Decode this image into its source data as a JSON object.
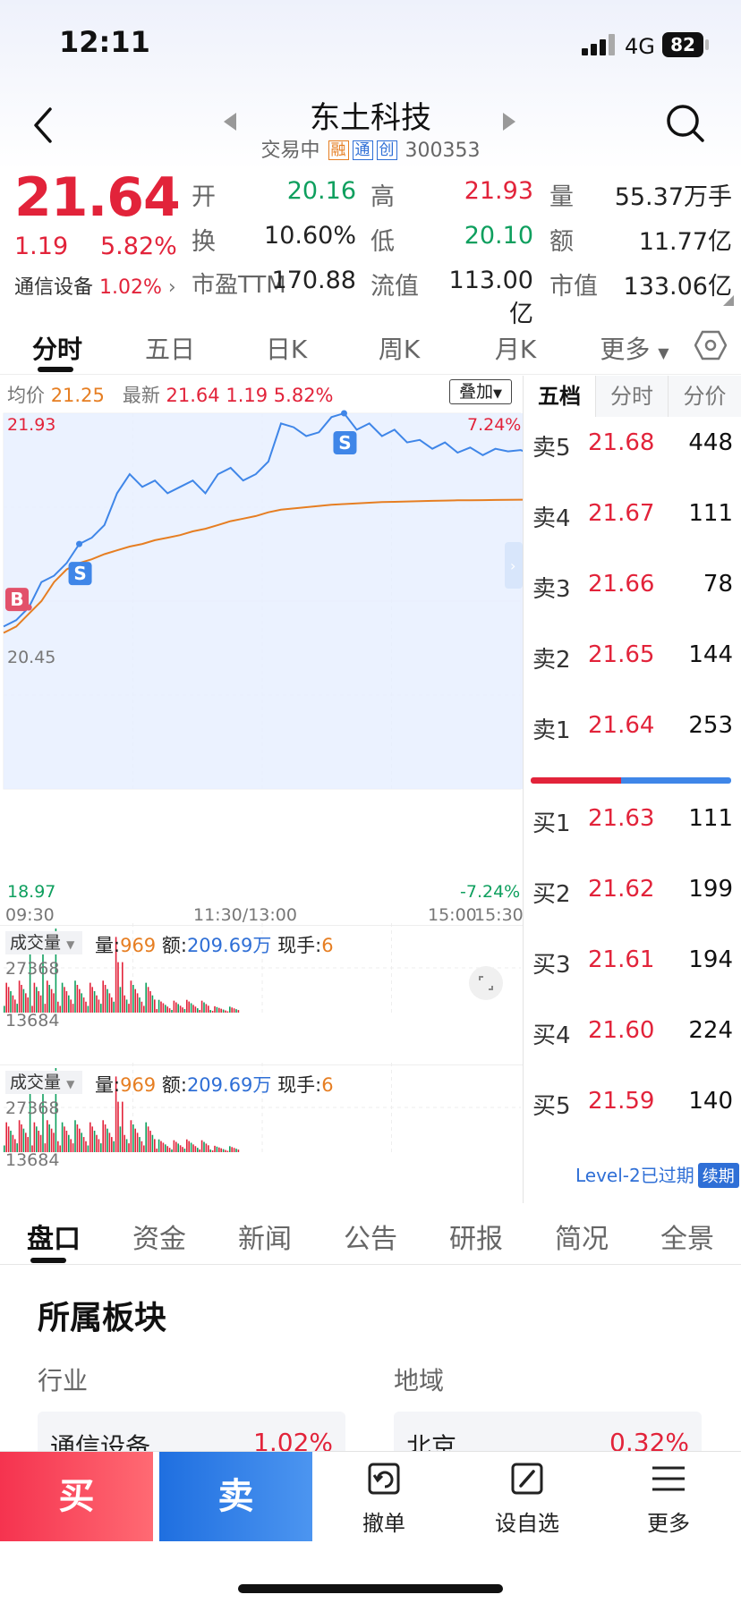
{
  "status_bar": {
    "time": "12:11",
    "network": "4G",
    "battery": "82"
  },
  "header": {
    "title": "东土科技",
    "status": "交易中",
    "tags": [
      "融",
      "通",
      "创"
    ],
    "code": "300353"
  },
  "quote": {
    "last_price": "21.64",
    "change": "1.19",
    "change_pct": "5.82%",
    "sector": "通信设备",
    "sector_pct": "1.02%",
    "fields": [
      {
        "label": "开",
        "value": "20.16",
        "color": "green"
      },
      {
        "label": "高",
        "value": "21.93",
        "color": "red"
      },
      {
        "label": "量",
        "value": "55.37万手",
        "color": "black"
      },
      {
        "label": "换",
        "value": "10.60%",
        "color": "black"
      },
      {
        "label": "低",
        "value": "20.10",
        "color": "green"
      },
      {
        "label": "额",
        "value": "11.77亿",
        "color": "black"
      },
      {
        "label": "市盈TTM",
        "value": "170.88",
        "color": "black"
      },
      {
        "label": "流值",
        "value": "113.00亿",
        "color": "black"
      },
      {
        "label": "市值",
        "value": "133.06亿",
        "color": "black"
      }
    ]
  },
  "chart_tabs": {
    "tabs": [
      "分时",
      "五日",
      "日K",
      "周K",
      "月K",
      "更多"
    ],
    "active": "分时"
  },
  "legend": {
    "avg_label": "均价",
    "avg_value": "21.25",
    "latest_label": "最新",
    "latest_value": "21.64",
    "latest_change": "1.19",
    "latest_pct": "5.82%",
    "overlay": "叠加"
  },
  "chart_data": {
    "type": "line",
    "y_high": "21.93",
    "y_mid": "20.45",
    "y_low": "18.97",
    "pct_high": "7.24%",
    "pct_low": "-7.24%",
    "ylim": [
      18.97,
      21.93
    ],
    "x_ticks": [
      "09:30",
      "11:30/13:00",
      "15:00",
      "15:30"
    ],
    "series": [
      {
        "name": "最新",
        "color": "#3f86e8",
        "values": [
          20.25,
          20.3,
          20.4,
          20.6,
          20.65,
          20.75,
          20.9,
          20.95,
          21.05,
          21.3,
          21.45,
          21.35,
          21.4,
          21.3,
          21.35,
          21.4,
          21.3,
          21.45,
          21.5,
          21.4,
          21.45,
          21.55,
          21.85,
          21.82,
          21.75,
          21.78,
          21.9,
          21.93,
          21.8,
          21.85,
          21.75,
          21.8,
          21.7,
          21.72,
          21.65,
          21.7,
          21.62,
          21.66,
          21.6,
          21.65,
          21.63,
          21.64,
          21.6,
          21.65,
          21.64
        ]
      },
      {
        "name": "均价",
        "color": "#e67e22",
        "values": [
          20.2,
          20.25,
          20.35,
          20.45,
          20.6,
          20.7,
          20.75,
          20.78,
          20.82,
          20.85,
          20.88,
          20.9,
          20.93,
          20.95,
          20.97,
          21.0,
          21.02,
          21.05,
          21.08,
          21.1,
          21.12,
          21.15,
          21.17,
          21.18,
          21.19,
          21.2,
          21.21,
          21.215,
          21.22,
          21.225,
          21.23,
          21.232,
          21.235,
          21.238,
          21.24,
          21.242,
          21.244,
          21.245,
          21.246,
          21.247,
          21.248,
          21.249,
          21.25,
          21.25,
          21.25
        ]
      }
    ],
    "markers": [
      {
        "label": "B",
        "index": 2
      },
      {
        "label": "S",
        "index": 6
      },
      {
        "label": "S",
        "index": 27
      }
    ]
  },
  "volume_panels": [
    {
      "selector": "成交量",
      "vol_label": "量",
      "vol": "969",
      "amt_label": "额",
      "amt": "209.69万",
      "hand_label": "现手",
      "hand": "6",
      "max": "27368",
      "mid": "13684"
    },
    {
      "selector": "成交量",
      "vol_label": "量",
      "vol": "969",
      "amt_label": "额",
      "amt": "209.69万",
      "hand_label": "现手",
      "hand": "6",
      "max": "27368",
      "mid": "13684"
    }
  ],
  "order_book": {
    "tabs": [
      "五档",
      "分时",
      "分价"
    ],
    "asks": [
      {
        "label": "卖5",
        "price": "21.68",
        "vol": "448"
      },
      {
        "label": "卖4",
        "price": "21.67",
        "vol": "111"
      },
      {
        "label": "卖3",
        "price": "21.66",
        "vol": "78"
      },
      {
        "label": "卖2",
        "price": "21.65",
        "vol": "144"
      },
      {
        "label": "卖1",
        "price": "21.64",
        "vol": "253"
      }
    ],
    "bids": [
      {
        "label": "买1",
        "price": "21.63",
        "vol": "111"
      },
      {
        "label": "买2",
        "price": "21.62",
        "vol": "199"
      },
      {
        "label": "买3",
        "price": "21.61",
        "vol": "194"
      },
      {
        "label": "买4",
        "price": "21.60",
        "vol": "224"
      },
      {
        "label": "买5",
        "price": "21.59",
        "vol": "140"
      }
    ],
    "buy_ratio": 0.45,
    "level2_text": "Level-2已过期",
    "renew": "续期"
  },
  "info_tabs": {
    "tabs": [
      "盘口",
      "资金",
      "新闻",
      "公告",
      "研报",
      "简况",
      "全景"
    ],
    "active": "盘口"
  },
  "sector_section": {
    "title": "所属板块",
    "industry_label": "行业",
    "region_label": "地域",
    "industry": {
      "name": "通信设备",
      "pct": "1.02%"
    },
    "region": {
      "name": "北京",
      "pct": "0.32%"
    }
  },
  "action_bar": {
    "buy": "买",
    "sell": "卖",
    "actions": [
      {
        "label": "撤单",
        "icon": "undo-icon"
      },
      {
        "label": "设自选",
        "icon": "edit-icon"
      },
      {
        "label": "更多",
        "icon": "menu-icon"
      }
    ]
  }
}
